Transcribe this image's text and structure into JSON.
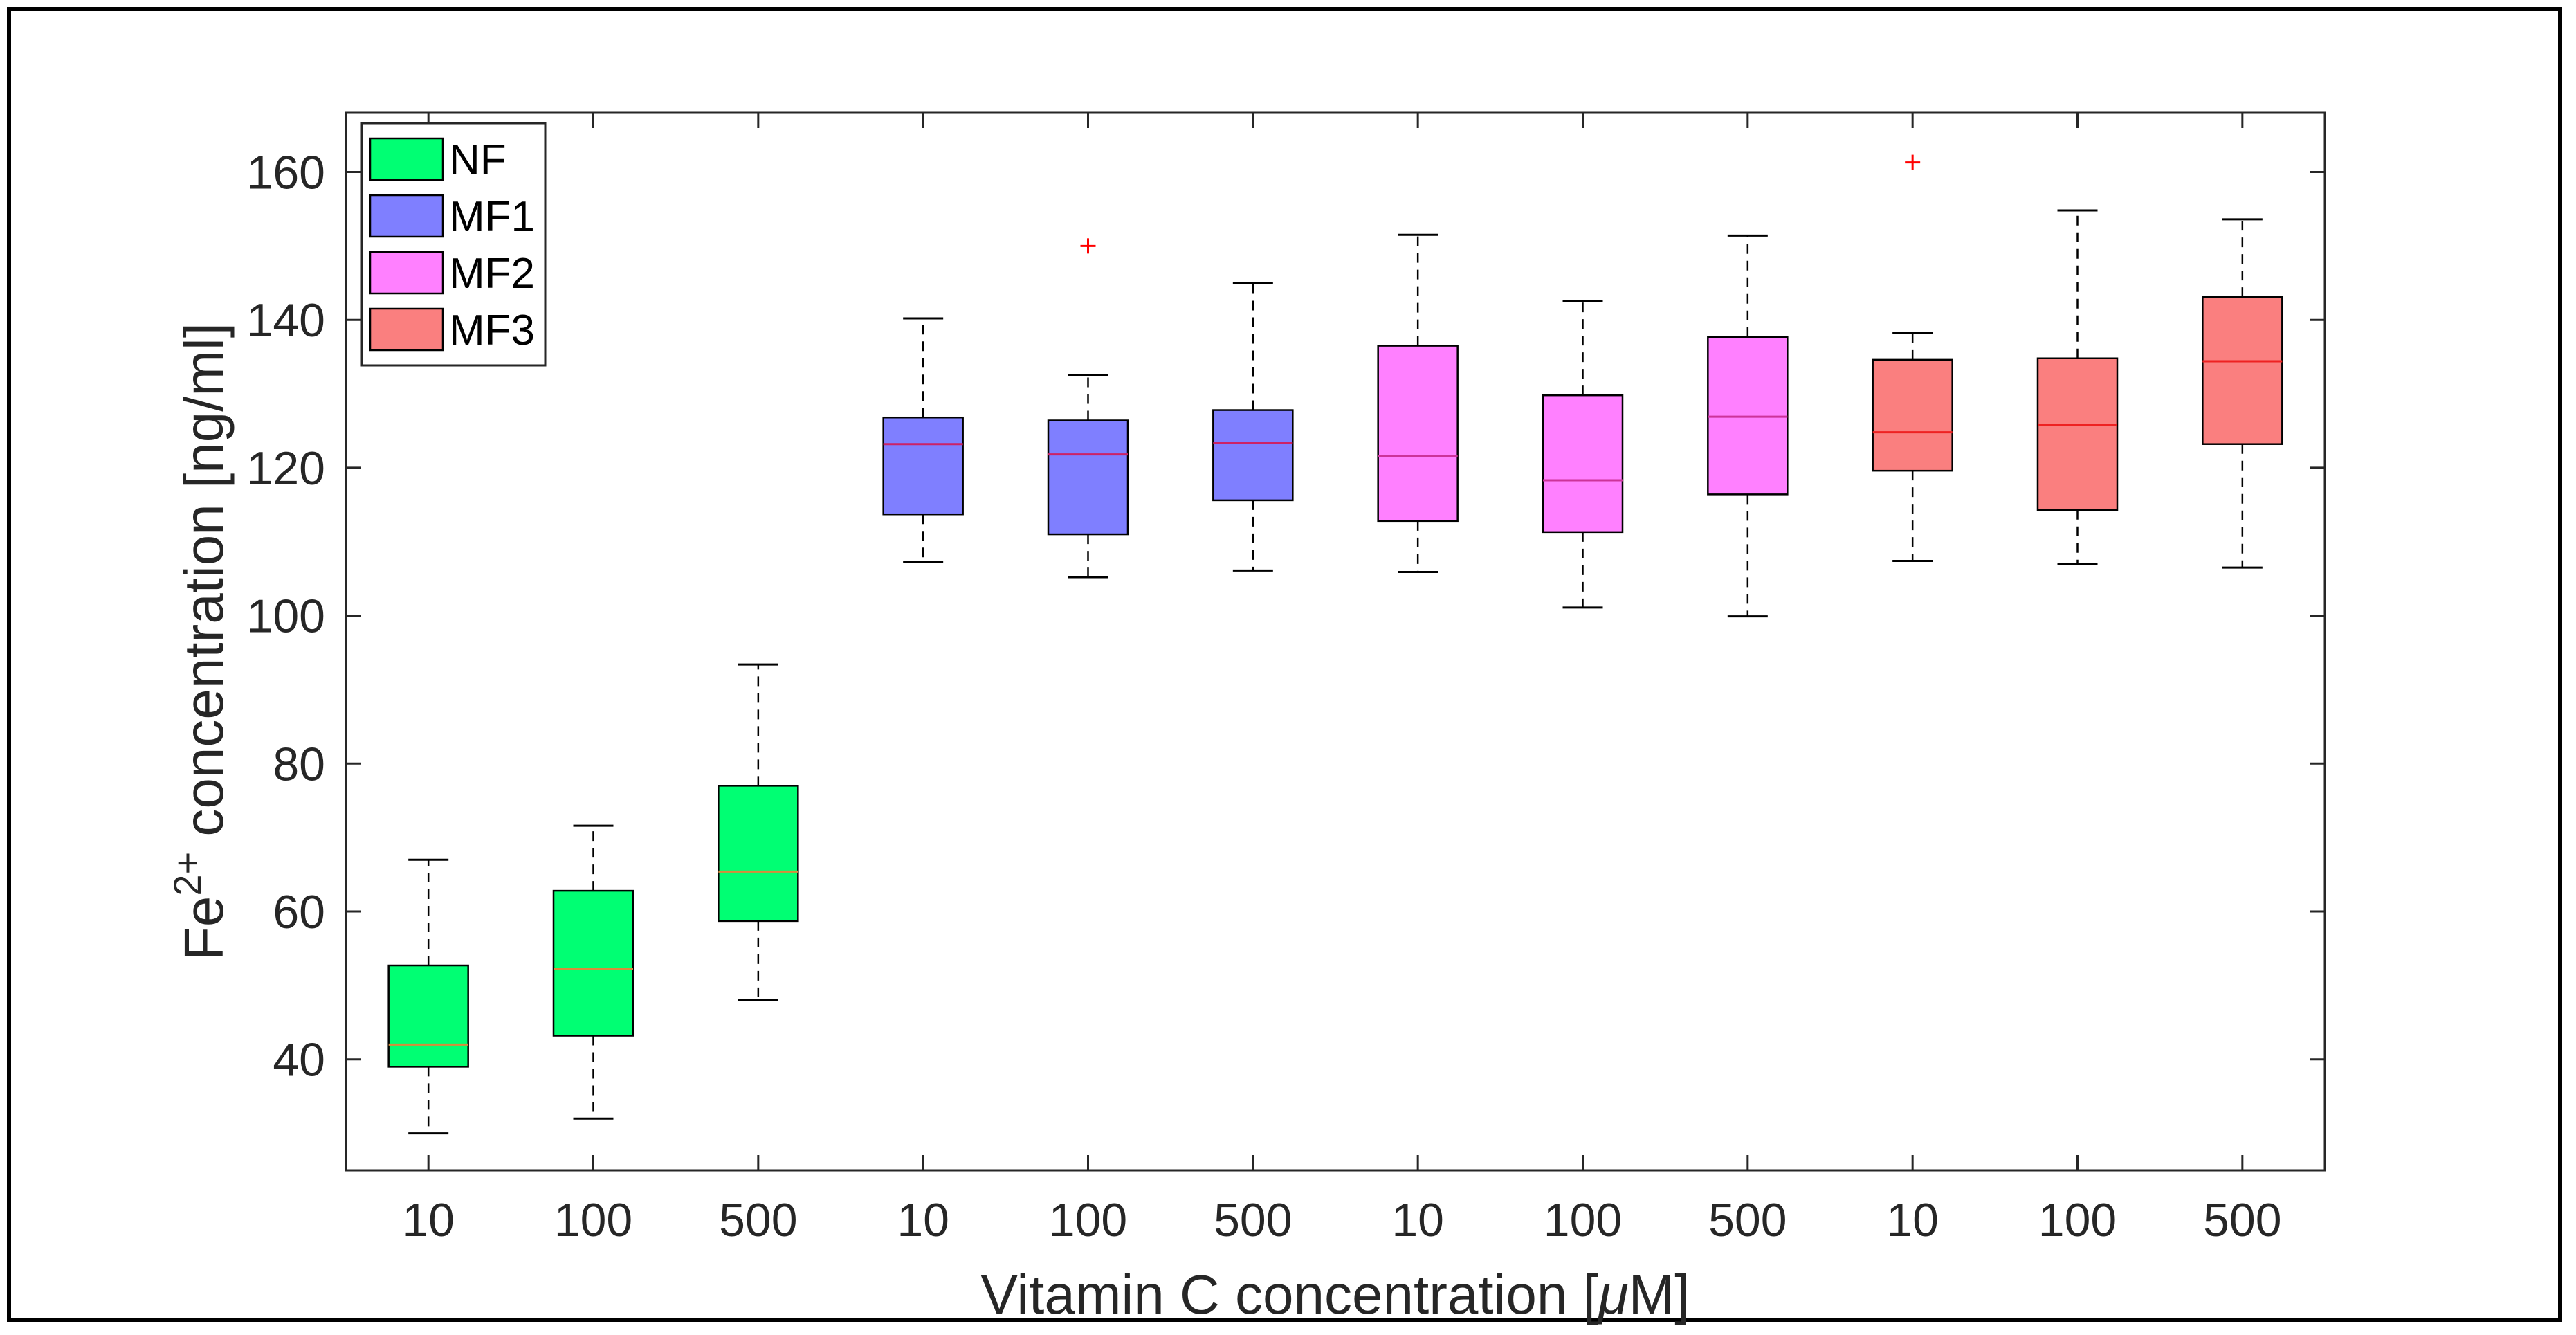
{
  "chart_data": {
    "type": "boxplot",
    "xlabel_prefix": "Vitamin C concentration [",
    "xlabel_mu": "μ",
    "xlabel_suffix": "M]",
    "ylabel_prefix": "Fe",
    "ylabel_sup": "2+",
    "ylabel_suffix": " concentration [ng/ml]",
    "ylim": [
      25,
      168
    ],
    "yticks": [
      40,
      60,
      80,
      100,
      120,
      140,
      160
    ],
    "categories": [
      "10",
      "100",
      "500",
      "10",
      "100",
      "500",
      "10",
      "100",
      "500",
      "10",
      "100",
      "500"
    ],
    "groups": [
      {
        "name": "NF",
        "fill": "#00ff73",
        "median_color": "#d98c3a"
      },
      {
        "name": "MF1",
        "fill": "#7f7fff",
        "median_color": "#cc2266"
      },
      {
        "name": "MF2",
        "fill": "#ff80ff",
        "median_color": "#cc3399"
      },
      {
        "name": "MF3",
        "fill": "#fa7f7f",
        "median_color": "#ee2222"
      }
    ],
    "boxes": [
      {
        "group": 0,
        "category": "10",
        "whisker_low": 30,
        "q1": 39,
        "median": 42,
        "q3": 52.7,
        "whisker_high": 67,
        "outliers": []
      },
      {
        "group": 0,
        "category": "100",
        "whisker_low": 32,
        "q1": 43.2,
        "median": 52.2,
        "q3": 62.8,
        "whisker_high": 71.6,
        "outliers": []
      },
      {
        "group": 0,
        "category": "500",
        "whisker_low": 48,
        "q1": 58.7,
        "median": 65.4,
        "q3": 77,
        "whisker_high": 93.4,
        "outliers": []
      },
      {
        "group": 1,
        "category": "10",
        "whisker_low": 107.3,
        "q1": 113.7,
        "median": 123.2,
        "q3": 126.8,
        "whisker_high": 140.2,
        "outliers": []
      },
      {
        "group": 1,
        "category": "100",
        "whisker_low": 105.2,
        "q1": 111,
        "median": 121.8,
        "q3": 126.4,
        "whisker_high": 132.5,
        "outliers": [
          150
        ]
      },
      {
        "group": 1,
        "category": "500",
        "whisker_low": 106.1,
        "q1": 115.6,
        "median": 123.4,
        "q3": 127.8,
        "whisker_high": 145,
        "outliers": []
      },
      {
        "group": 2,
        "category": "10",
        "whisker_low": 105.9,
        "q1": 112.8,
        "median": 121.6,
        "q3": 136.5,
        "whisker_high": 151.5,
        "outliers": []
      },
      {
        "group": 2,
        "category": "100",
        "whisker_low": 101.1,
        "q1": 111.3,
        "median": 118.3,
        "q3": 129.8,
        "whisker_high": 142.5,
        "outliers": []
      },
      {
        "group": 2,
        "category": "500",
        "whisker_low": 99.9,
        "q1": 116.4,
        "median": 126.9,
        "q3": 137.7,
        "whisker_high": 151.4,
        "outliers": []
      },
      {
        "group": 3,
        "category": "10",
        "whisker_low": 107.4,
        "q1": 119.6,
        "median": 124.8,
        "q3": 134.6,
        "whisker_high": 138.2,
        "outliers": [
          161.3
        ]
      },
      {
        "group": 3,
        "category": "100",
        "whisker_low": 107,
        "q1": 114.3,
        "median": 125.8,
        "q3": 134.8,
        "whisker_high": 154.8,
        "outliers": []
      },
      {
        "group": 3,
        "category": "500",
        "whisker_low": 106.5,
        "q1": 123.2,
        "median": 134.4,
        "q3": 143.1,
        "whisker_high": 153.6,
        "outliers": []
      }
    ],
    "legend_position": "top-left",
    "outlier_color": "#ff0000"
  }
}
